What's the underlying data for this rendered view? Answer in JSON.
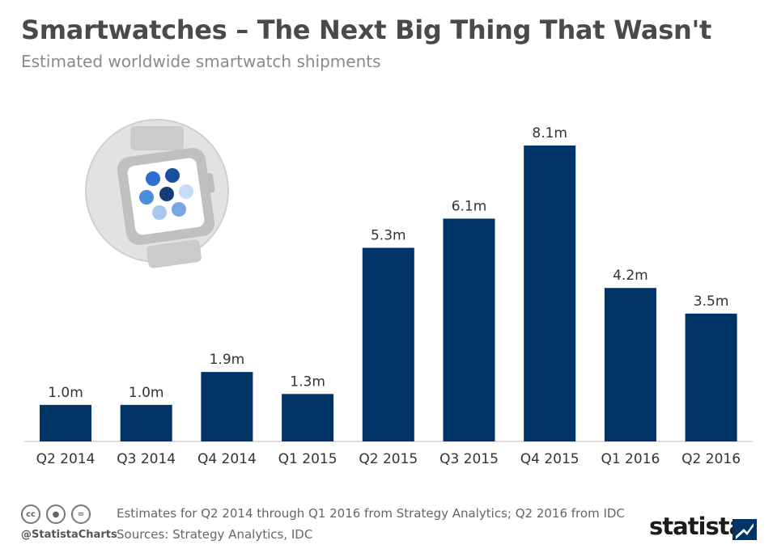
{
  "header": {
    "title": "Smartwatches – The Next Big Thing That Wasn't",
    "subtitle": "Estimated worldwide smartwatch shipments"
  },
  "chart_data": {
    "type": "bar",
    "categories": [
      "Q2 2014",
      "Q3 2014",
      "Q4 2014",
      "Q1 2015",
      "Q2 2015",
      "Q3 2015",
      "Q4 2015",
      "Q1 2016",
      "Q2 2016"
    ],
    "values": [
      1.0,
      1.0,
      1.9,
      1.3,
      5.3,
      6.1,
      8.1,
      4.2,
      3.5
    ],
    "data_labels": [
      "1.0m",
      "1.0m",
      "1.9m",
      "1.3m",
      "5.3m",
      "6.1m",
      "8.1m",
      "4.2m",
      "3.5m"
    ],
    "title": "Smartwatches – The Next Big Thing That Wasn't",
    "subtitle": "Estimated worldwide smartwatch shipments",
    "xlabel": "",
    "ylabel": "",
    "ylim": [
      0,
      8.1
    ],
    "grid": false,
    "legend": "none",
    "bar_color": "#003366"
  },
  "footer": {
    "note": "Estimates for Q2 2014 through Q1 2016 from Strategy Analytics; Q2 2016 from IDC",
    "sources": "Sources: Strategy Analytics, IDC",
    "handle": "@StatistaCharts",
    "brand": "statista",
    "license_icons": [
      "cc-icon",
      "person-icon",
      "equals-icon"
    ]
  },
  "colors": {
    "bar": "#003366",
    "title": "#4a4a4a",
    "subtitle": "#8a8a8a",
    "watch_dots": [
      "#2a6fd1",
      "#1a4fa0",
      "#4a8ee0",
      "#163d7a",
      "#c8dcf5",
      "#7aa6e6",
      "#a9c8f0"
    ]
  }
}
